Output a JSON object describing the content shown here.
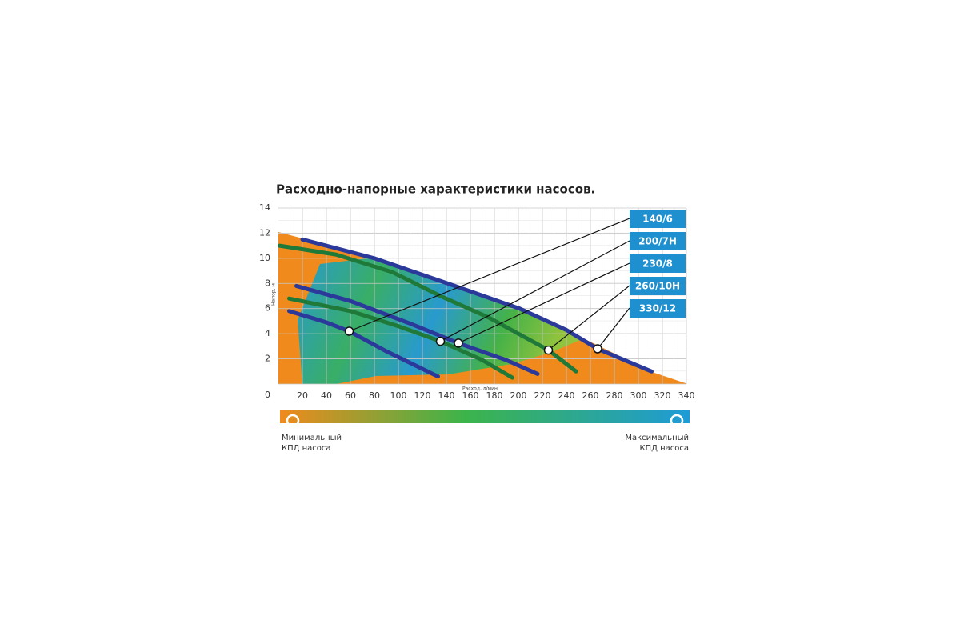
{
  "chart_data": {
    "type": "line",
    "title": "Расходно-напорные характеристики насосов.",
    "x_label": "Расход, л/мин",
    "y_label": "Напор, м",
    "xlim": [
      0,
      340
    ],
    "ylim": [
      0,
      14
    ],
    "xticks": [
      20,
      40,
      60,
      80,
      100,
      120,
      140,
      160,
      180,
      200,
      220,
      240,
      260,
      280,
      300,
      320,
      340
    ],
    "yticks": [
      0,
      2,
      4,
      6,
      8,
      10,
      12,
      14
    ],
    "grid": true,
    "series": [
      {
        "name": "140/6",
        "color": "#2b3a9a",
        "x": [
          9,
          40,
          59,
          90,
          133
        ],
        "values": [
          5.8,
          4.9,
          4.2,
          2.6,
          0.6
        ],
        "marker": {
          "x": 59,
          "y": 4.2
        }
      },
      {
        "name": "200/7H",
        "color": "#1f7a3a",
        "x": [
          9,
          60,
          100,
          135,
          170,
          195
        ],
        "values": [
          6.8,
          5.8,
          4.6,
          3.4,
          1.9,
          0.5
        ],
        "marker": {
          "x": 135,
          "y": 3.4
        }
      },
      {
        "name": "230/8",
        "color": "#2b3a9a",
        "x": [
          15,
          60,
          110,
          150,
          190,
          216
        ],
        "values": [
          7.8,
          6.6,
          4.8,
          3.25,
          1.9,
          0.8
        ],
        "marker": {
          "x": 150,
          "y": 3.25
        }
      },
      {
        "name": "260/10H",
        "color": "#1f7a3a",
        "x": [
          1,
          48,
          95,
          135,
          175,
          200,
          225,
          248
        ],
        "values": [
          11,
          10.3,
          8.9,
          7,
          5.3,
          4,
          2.7,
          1
        ],
        "marker": {
          "x": 225,
          "y": 2.7
        }
      },
      {
        "name": "330/12",
        "color": "#2b3a9a",
        "x": [
          20,
          80,
          141,
          201,
          240,
          266,
          311
        ],
        "values": [
          11.5,
          10,
          8,
          6,
          4.3,
          2.8,
          1
        ],
        "marker": {
          "x": 266,
          "y": 2.8
        }
      }
    ],
    "colorbar": {
      "min_label": [
        "Минимальный",
        "КПД насоса"
      ],
      "max_label": [
        "Максимальный",
        "КПД насоса"
      ]
    }
  }
}
